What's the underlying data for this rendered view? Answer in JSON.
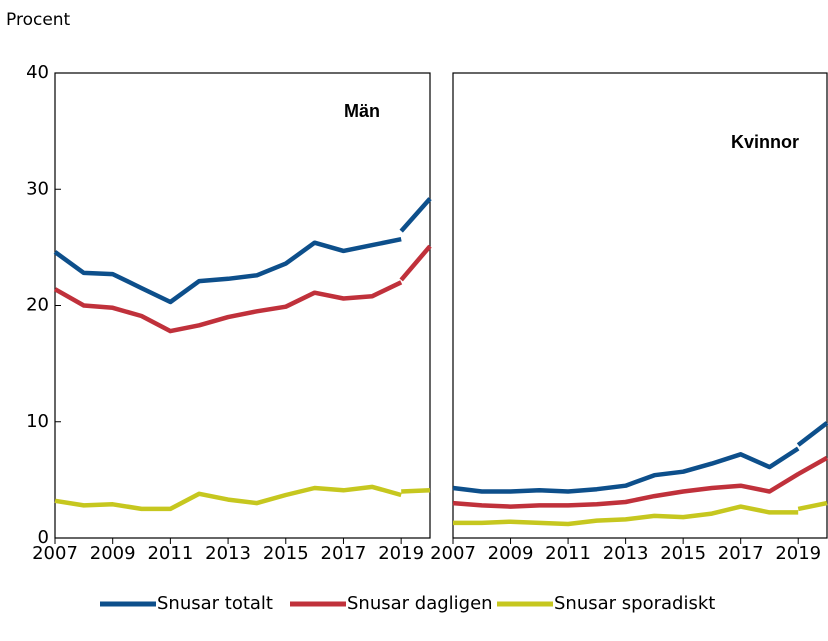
{
  "y_label": "Procent",
  "chart_data": [
    {
      "type": "line",
      "title": "Män",
      "x": [
        2007,
        2008,
        2009,
        2010,
        2011,
        2012,
        2013,
        2014,
        2015,
        2016,
        2017,
        2018,
        2019,
        2019,
        2019,
        2020
      ],
      "xlim": [
        2007,
        2020
      ],
      "xticks": [
        2007,
        2009,
        2011,
        2013,
        2015,
        2017,
        2019
      ],
      "ylim": [
        0,
        40
      ],
      "yticks": [
        0,
        10,
        20,
        30,
        40
      ],
      "series": [
        {
          "name": "Snusar totalt",
          "color": "#0d4f8b",
          "values": [
            24.6,
            22.8,
            22.7,
            21.5,
            20.3,
            22.1,
            22.3,
            22.6,
            23.6,
            25.4,
            24.7,
            25.2,
            25.7,
            null,
            26.4,
            29.2
          ]
        },
        {
          "name": "Snusar dagligen",
          "color": "#c0313b",
          "values": [
            21.4,
            20.0,
            19.8,
            19.1,
            17.8,
            18.3,
            19.0,
            19.5,
            19.9,
            21.1,
            20.6,
            20.8,
            22.0,
            null,
            22.2,
            25.1
          ]
        },
        {
          "name": "Snusar sporadiskt",
          "color": "#c6c71f",
          "values": [
            3.2,
            2.8,
            2.9,
            2.5,
            2.5,
            3.8,
            3.3,
            3.0,
            3.7,
            4.3,
            4.1,
            4.4,
            3.7,
            null,
            4.0,
            4.1
          ]
        }
      ]
    },
    {
      "type": "line",
      "title": "Kvinnor",
      "x": [
        2007,
        2008,
        2009,
        2010,
        2011,
        2012,
        2013,
        2014,
        2015,
        2016,
        2017,
        2018,
        2019,
        2019,
        2019,
        2020
      ],
      "xlim": [
        2007,
        2020
      ],
      "xticks": [
        2007,
        2009,
        2011,
        2013,
        2015,
        2017,
        2019
      ],
      "ylim": [
        0,
        40
      ],
      "series": [
        {
          "color": "#0d4f8b",
          "values": [
            4.3,
            4.0,
            4.0,
            4.1,
            4.0,
            4.2,
            4.5,
            5.4,
            5.7,
            6.4,
            7.2,
            6.1,
            7.7,
            null,
            8.0,
            9.9
          ]
        },
        {
          "color": "#c0313b",
          "values": [
            3.0,
            2.8,
            2.7,
            2.8,
            2.8,
            2.9,
            3.1,
            3.6,
            4.0,
            4.3,
            4.5,
            4.0,
            5.5,
            null,
            5.5,
            6.9
          ]
        },
        {
          "color": "#c6c71f",
          "values": [
            1.3,
            1.3,
            1.4,
            1.3,
            1.2,
            1.5,
            1.6,
            1.9,
            1.8,
            2.1,
            2.7,
            2.2,
            2.2,
            null,
            2.5,
            3.0
          ]
        }
      ]
    }
  ]
}
